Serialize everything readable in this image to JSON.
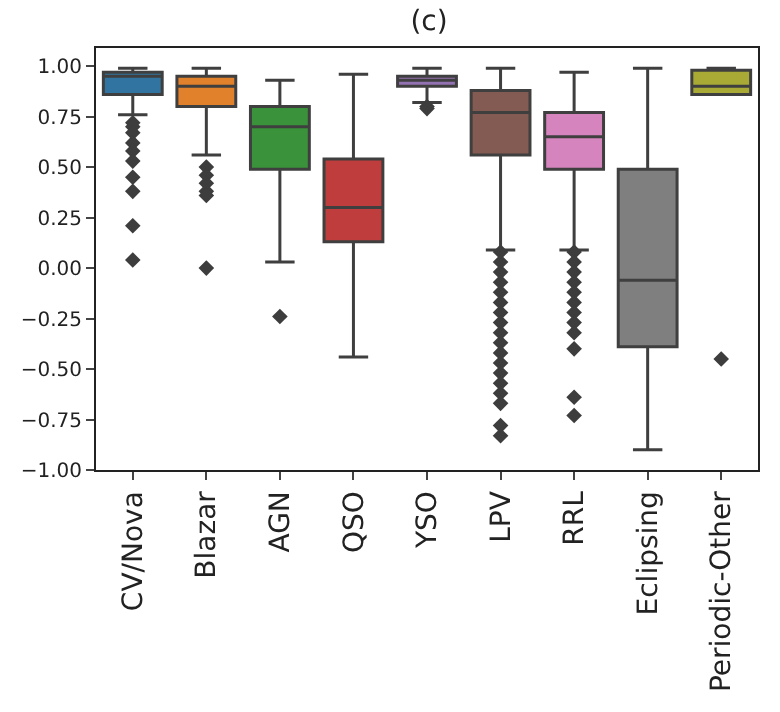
{
  "chart_data": {
    "type": "box",
    "title": "(c)",
    "categories": [
      "CV/Nova",
      "Blazar",
      "AGN",
      "QSO",
      "YSO",
      "LPV",
      "RRL",
      "Eclipsing",
      "Periodic-Other"
    ],
    "colors": [
      "#3274a1",
      "#e1812c",
      "#3a923a",
      "#c03d3e",
      "#9372b2",
      "#845b53",
      "#d684bd",
      "#7f7f7f",
      "#a9aa35"
    ],
    "boxes": [
      {
        "low": 0.76,
        "q1": 0.86,
        "median": 0.95,
        "q3": 0.97,
        "high": 0.99,
        "outliers": [
          0.72,
          0.7,
          0.67,
          0.62,
          0.58,
          0.53,
          0.45,
          0.38,
          0.21,
          0.04
        ]
      },
      {
        "low": 0.56,
        "q1": 0.8,
        "median": 0.9,
        "q3": 0.95,
        "high": 0.99,
        "outliers": [
          0.5,
          0.46,
          0.42,
          0.38,
          0.36,
          0.0
        ]
      },
      {
        "low": 0.03,
        "q1": 0.49,
        "median": 0.7,
        "q3": 0.8,
        "high": 0.93,
        "outliers": [
          -0.24
        ]
      },
      {
        "low": -0.44,
        "q1": 0.13,
        "median": 0.3,
        "q3": 0.54,
        "high": 0.96
      },
      {
        "low": 0.82,
        "q1": 0.9,
        "median": 0.93,
        "q3": 0.95,
        "high": 0.99,
        "outliers": [
          0.8,
          0.79
        ]
      },
      {
        "low": 0.09,
        "q1": 0.56,
        "median": 0.77,
        "q3": 0.88,
        "high": 0.99,
        "outliers": [
          0.08,
          0.03,
          -0.02,
          -0.07,
          -0.12,
          -0.17,
          -0.22,
          -0.27,
          -0.32,
          -0.37,
          -0.42,
          -0.47,
          -0.52,
          -0.57,
          -0.62,
          -0.67,
          -0.78,
          -0.83
        ]
      },
      {
        "low": 0.09,
        "q1": 0.49,
        "median": 0.65,
        "q3": 0.77,
        "high": 0.97,
        "outliers": [
          0.08,
          0.03,
          -0.02,
          -0.07,
          -0.12,
          -0.17,
          -0.22,
          -0.27,
          -0.32,
          -0.4,
          -0.64,
          -0.73
        ]
      },
      {
        "low": -0.9,
        "q1": -0.39,
        "median": -0.06,
        "q3": 0.49,
        "high": 0.99
      },
      {
        "low": 0.86,
        "q1": 0.86,
        "median": 0.9,
        "q3": 0.98,
        "high": 0.99,
        "outliers": [
          -0.45
        ]
      }
    ],
    "ylim": [
      -1.0,
      1.09
    ],
    "yticks": [
      {
        "value": -1,
        "label": "−1.00"
      },
      {
        "value": -0.75,
        "label": "−0.75"
      },
      {
        "value": -0.5,
        "label": "−0.50"
      },
      {
        "value": -0.25,
        "label": "−0.25"
      },
      {
        "value": 0,
        "label": "0.00"
      },
      {
        "value": 0.25,
        "label": "0.25"
      },
      {
        "value": 0.5,
        "label": "0.50"
      },
      {
        "value": 0.75,
        "label": "0.75"
      },
      {
        "value": 1,
        "label": "1.00"
      }
    ],
    "marker": "diamond"
  }
}
